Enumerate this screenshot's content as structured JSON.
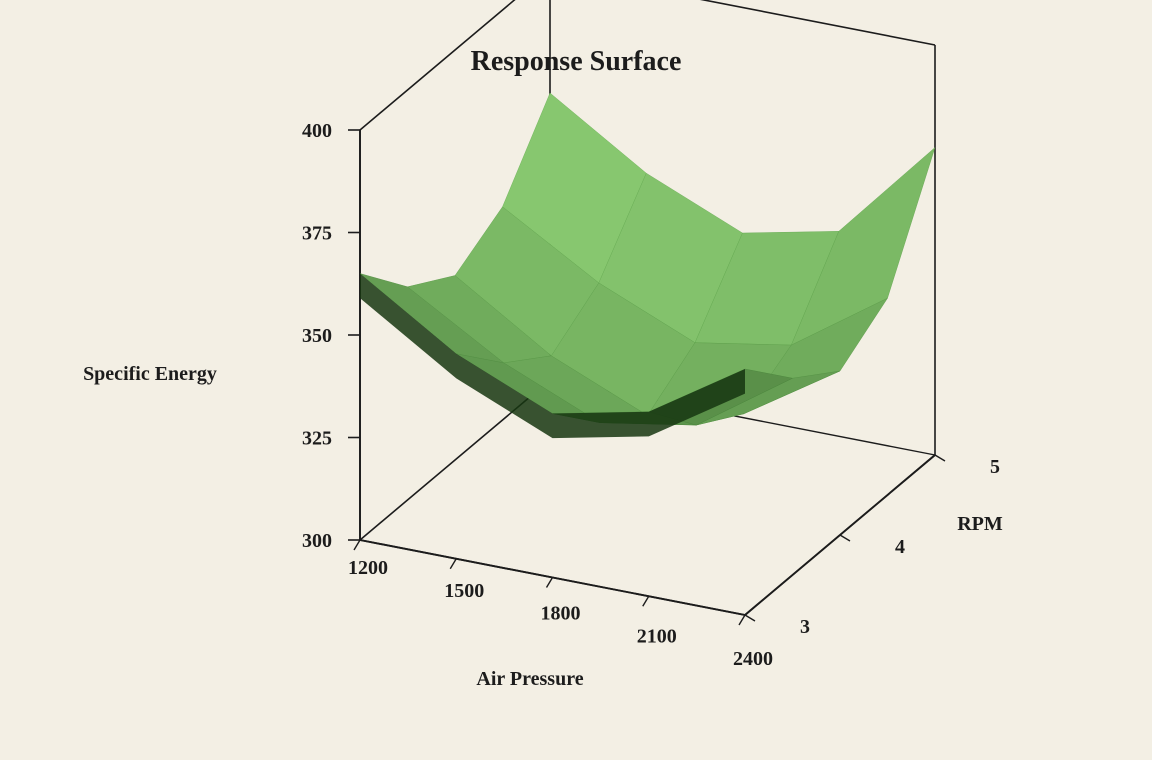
{
  "chart": {
    "type": "surface-3d",
    "title": "Response Surface",
    "title_fontsize": 28,
    "title_weight": "bold",
    "background_color": "#f3efe4",
    "axis_label_fontsize": 20,
    "axis_label_weight": "bold",
    "tick_fontsize": 20,
    "tick_weight": "bold",
    "axis_line_color": "#1c1c1c",
    "tick_line_color": "#1c1c1c",
    "text_color": "#1c1c1c",
    "z_axis": {
      "label": "Specific Energy",
      "min": 300,
      "max": 400,
      "tick_step": 25,
      "ticks": [
        300,
        325,
        350,
        375,
        400
      ]
    },
    "x_axis": {
      "label": "Air Pressure",
      "min": 1200,
      "max": 2400,
      "tick_step": 300,
      "ticks": [
        1200,
        1500,
        1800,
        2100,
        2400
      ]
    },
    "y_axis": {
      "label": "RPM",
      "min": 3,
      "max": 5,
      "tick_step": 1,
      "ticks": [
        3,
        4,
        5
      ]
    },
    "surface": {
      "colors": {
        "light": "#8ed075",
        "mid": "#6bb556",
        "shadow": "#2a5722",
        "dark": "#163611"
      },
      "grid": [
        [
          365,
          350,
          340,
          345,
          360
        ],
        [
          352,
          338,
          328,
          332,
          348
        ],
        [
          345,
          330,
          320,
          325,
          340
        ],
        [
          352,
          338,
          328,
          332,
          348
        ],
        [
          370,
          355,
          345,
          350,
          375
        ]
      ]
    }
  }
}
